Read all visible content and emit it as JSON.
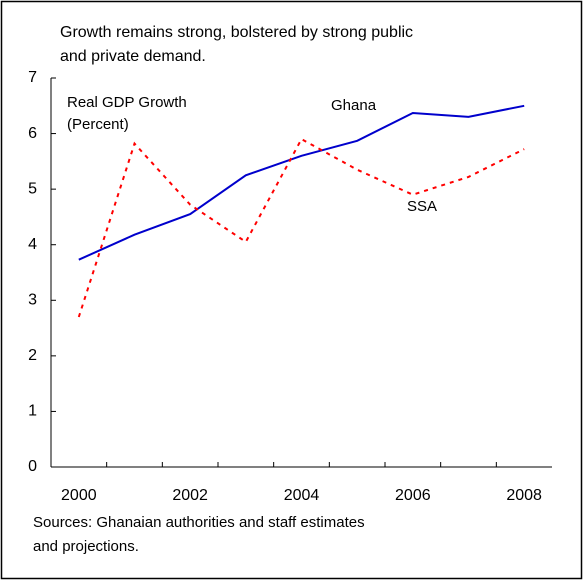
{
  "chart_data": {
    "type": "line",
    "title": [
      "Growth remains strong, bolstered by strong public",
      "and private demand."
    ],
    "annotations": [
      "Real GDP Growth",
      "(Percent)"
    ],
    "note": [
      "Sources: Ghanaian authorities and staff estimates",
      "and projections."
    ],
    "categories": [
      "2000",
      null,
      "2002",
      null,
      "2004",
      null,
      "2006",
      null,
      "2008"
    ],
    "series": [
      {
        "name": "Ghana",
        "color": "#0000cc",
        "dash": false,
        "values": [
          3.73,
          4.18,
          4.55,
          5.25,
          5.6,
          5.87,
          6.37,
          6.3,
          6.5
        ]
      },
      {
        "name": "SSA",
        "color": "#ff0000",
        "dash": true,
        "values": [
          2.7,
          5.82,
          4.72,
          4.05,
          5.9,
          5.35,
          4.9,
          5.22,
          5.72
        ]
      }
    ],
    "ylim": [
      0,
      7
    ],
    "yticks": [
      0,
      1,
      2,
      3,
      4,
      5,
      6,
      7
    ]
  }
}
